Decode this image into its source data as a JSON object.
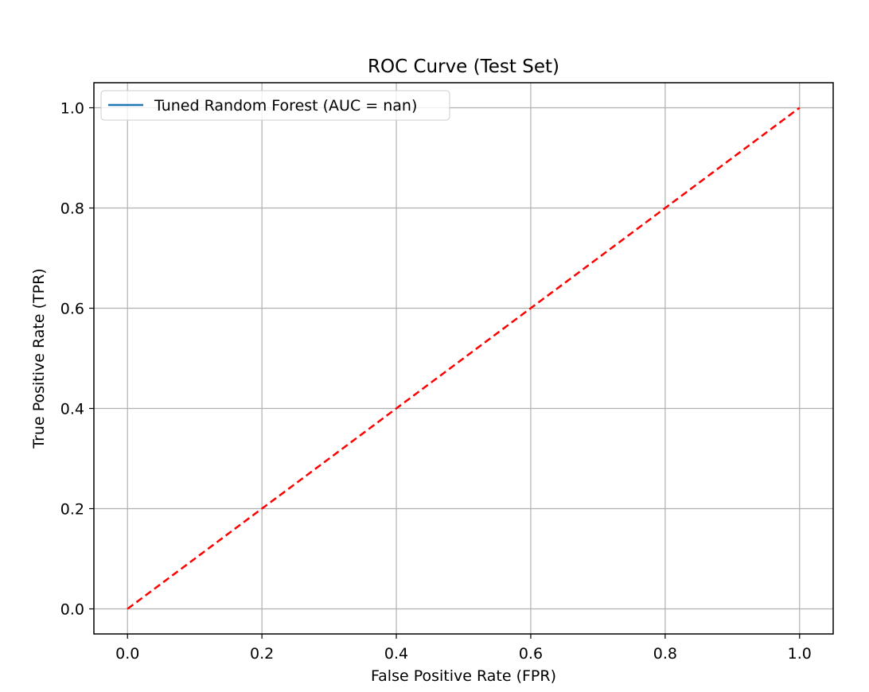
{
  "chart_data": {
    "type": "line",
    "title": "ROC Curve (Test Set)",
    "xlabel": "False Positive Rate (FPR)",
    "ylabel": "True Positive Rate (TPR)",
    "xlim": [
      -0.05,
      1.05
    ],
    "ylim": [
      -0.05,
      1.05
    ],
    "grid": true,
    "x_ticks": [
      0.0,
      0.2,
      0.4,
      0.6,
      0.8,
      1.0
    ],
    "y_ticks": [
      0.0,
      0.2,
      0.4,
      0.6,
      0.8,
      1.0
    ],
    "x_tick_labels": [
      "0.0",
      "0.2",
      "0.4",
      "0.6",
      "0.8",
      "1.0"
    ],
    "y_tick_labels": [
      "0.0",
      "0.2",
      "0.4",
      "0.6",
      "0.8",
      "1.0"
    ],
    "legend_placement": "top-left",
    "series": [
      {
        "name": "Tuned Random Forest (AUC = nan)",
        "color": "#1f77b4",
        "style": "solid",
        "x": [],
        "y": []
      },
      {
        "color": "#ff0000",
        "style": "dashed",
        "x": [
          0,
          1
        ],
        "y": [
          0,
          1
        ]
      }
    ],
    "colors": {
      "grid": "#b0b0b0",
      "axes": "#000000",
      "legend_border": "#cccccc"
    }
  }
}
